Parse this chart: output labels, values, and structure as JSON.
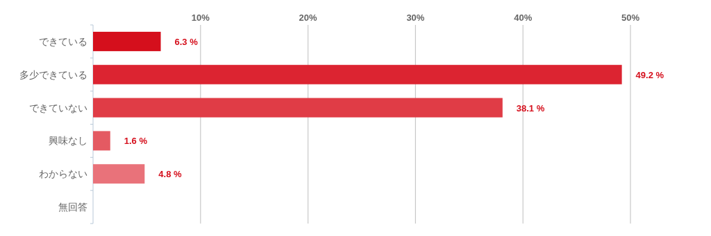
{
  "chart_data": {
    "type": "bar",
    "orientation": "horizontal",
    "categories": [
      "できている",
      "多少できている",
      "できていない",
      "興味なし",
      "わからない",
      "無回答"
    ],
    "values": [
      6.3,
      49.2,
      38.1,
      1.6,
      4.8,
      0
    ],
    "colors": [
      "#d50f1c",
      "#dc2431",
      "#e03c46",
      "#e45a62",
      "#e9727a",
      "#ee8a90"
    ],
    "value_labels": [
      "6.3 %",
      "49.2 %",
      "38.1 %",
      "1.6 %",
      "4.8 %",
      null
    ],
    "xlim": [
      0,
      50
    ],
    "xticks": [
      {
        "value": 10,
        "label": "10%"
      },
      {
        "value": 20,
        "label": "20%"
      },
      {
        "value": 30,
        "label": "30%"
      },
      {
        "value": 40,
        "label": "40%"
      },
      {
        "value": 50,
        "label": "50%"
      }
    ],
    "grid": "x"
  }
}
